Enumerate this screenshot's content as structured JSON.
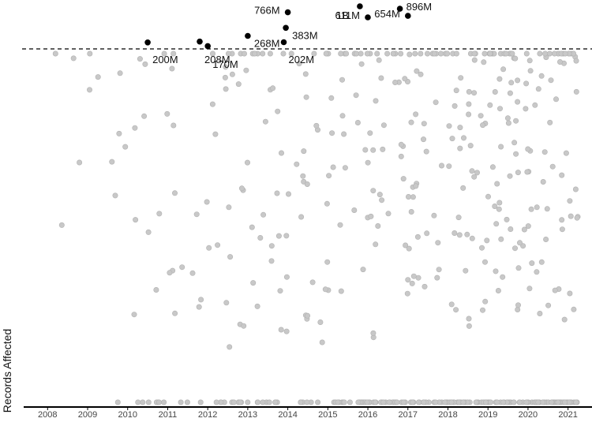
{
  "chart_data": {
    "type": "scatter",
    "title": "",
    "xlabel": "",
    "ylabel": "Records Affected",
    "xlim": [
      2007.6,
      2021.5
    ],
    "x_ticks": [
      "2008",
      "2009",
      "2010",
      "2011",
      "2012",
      "2013",
      "2014",
      "2015",
      "2016",
      "2017",
      "2018",
      "2019",
      "2020",
      "2021"
    ],
    "y_scale": "log",
    "threshold": "150M",
    "grid": false,
    "legend": "none",
    "colors": {
      "below": "#c8c8c8",
      "below_edge": "#b2b2b2",
      "above": "#000000",
      "axis": "#000000"
    },
    "highlighted_points": [
      {
        "x": 2010.5,
        "label": "200M"
      },
      {
        "x": 2011.8,
        "label": "208M"
      },
      {
        "x": 2012.0,
        "label": "170M"
      },
      {
        "x": 2013.0,
        "label": "268M"
      },
      {
        "x": 2013.9,
        "label": "202M"
      },
      {
        "x": 2013.95,
        "label": "383M"
      },
      {
        "x": 2014.0,
        "label": "766M"
      },
      {
        "x": 2015.8,
        "label": "1B"
      },
      {
        "x": 2016.0,
        "label": "611M"
      },
      {
        "x": 2016.8,
        "label": "896M"
      },
      {
        "x": 2017.0,
        "label": "654M"
      }
    ],
    "background_point_count": 540,
    "background_point_seed": 7
  }
}
